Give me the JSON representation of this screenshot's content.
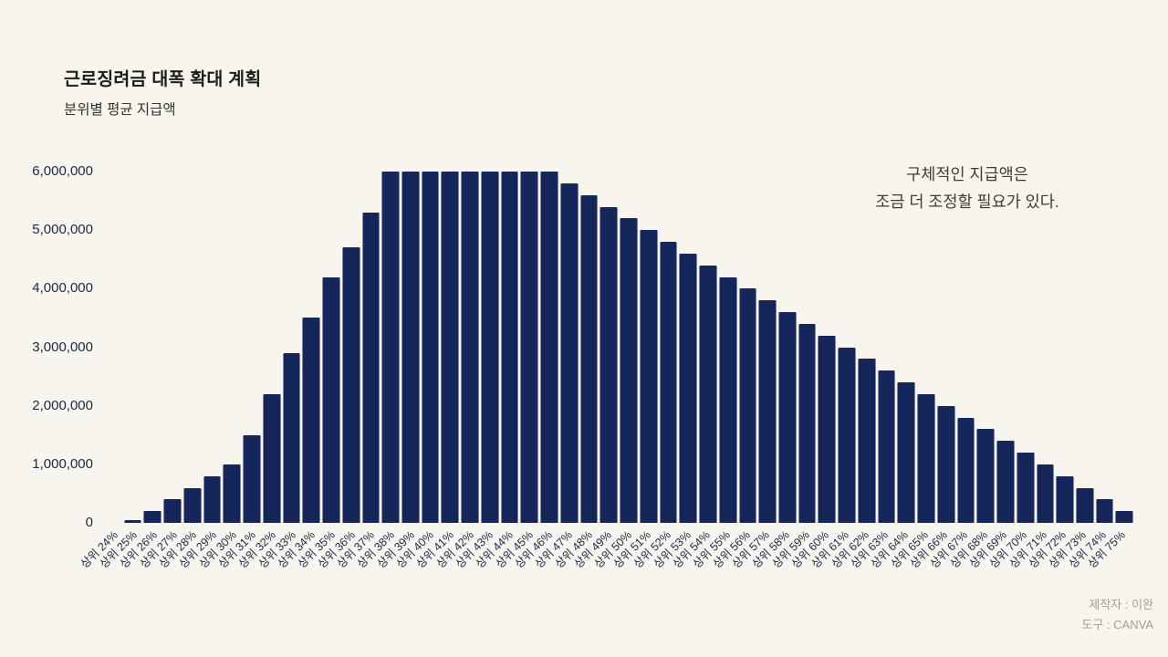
{
  "chart_data": {
    "type": "bar",
    "title": "근로징려금 대폭 확대 계획",
    "subtitle": "분위별 평균 지급액",
    "xlabel": "",
    "ylabel": "",
    "ylim": [
      0,
      6000000
    ],
    "grid": false,
    "legend": false,
    "categories": [
      "상위 24%",
      "상위 25%",
      "상위 26%",
      "상위 27%",
      "상위 28%",
      "상위 29%",
      "상위 30%",
      "상위 31%",
      "상위 32%",
      "상위 33%",
      "상위 34%",
      "상위 35%",
      "상위 36%",
      "상위 37%",
      "상위 38%",
      "상위 39%",
      "상위 40%",
      "상위 41%",
      "상위 42%",
      "상위 43%",
      "상위 44%",
      "상위 45%",
      "상위 46%",
      "상위 47%",
      "상위 48%",
      "상위 49%",
      "상위 50%",
      "상위 51%",
      "상위 52%",
      "상위 53%",
      "상위 54%",
      "상위 55%",
      "상위 56%",
      "상위 57%",
      "상위 58%",
      "상위 59%",
      "상위 60%",
      "상위 61%",
      "상위 62%",
      "상위 63%",
      "상위 64%",
      "상위 65%",
      "상위 66%",
      "상위 67%",
      "상위 68%",
      "상위 69%",
      "상위 70%",
      "상위 71%",
      "상위 72%",
      "상위 73%",
      "상위 74%",
      "상위 75%"
    ],
    "values": [
      0,
      50000,
      200000,
      400000,
      600000,
      800000,
      1000000,
      1500000,
      2200000,
      2900000,
      3500000,
      4200000,
      4700000,
      5300000,
      6000000,
      6000000,
      6000000,
      6000000,
      6000000,
      6000000,
      6000000,
      6000000,
      6000000,
      5800000,
      5600000,
      5400000,
      5200000,
      5000000,
      4800000,
      4600000,
      4400000,
      4200000,
      4000000,
      3800000,
      3600000,
      3400000,
      3200000,
      3000000,
      2800000,
      2600000,
      2400000,
      2200000,
      2000000,
      1800000,
      1600000,
      1400000,
      1200000,
      1000000,
      800000,
      600000,
      400000,
      200000
    ],
    "yticks": [
      0,
      1000000,
      2000000,
      3000000,
      4000000,
      5000000,
      6000000
    ],
    "ytick_labels": [
      "0",
      "1,000,000",
      "2,000,000",
      "3,000,000",
      "4,000,000",
      "5,000,000",
      "6,000,000"
    ]
  },
  "annotation": {
    "line1": "구체적인 지급액은",
    "line2": "조금 더 조정할 필요가 있다."
  },
  "credits": {
    "line1": "제작자 : 이완",
    "line2": "도구 : CANVA"
  },
  "colors": {
    "background": "#f8f4ee",
    "bar": "#14265a",
    "axis_text": "#1b2949",
    "title": "#1d1d1b",
    "subtitle": "#32322e",
    "annotation_text": "#3e3c36",
    "credits_text": "#a49e92"
  }
}
